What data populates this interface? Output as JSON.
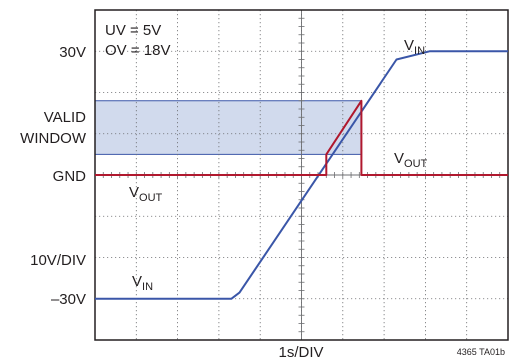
{
  "chart_data": {
    "type": "line",
    "title": "",
    "annotations": {
      "uv": "UV = 5V",
      "ov": "OV = 18V",
      "window_line1": "VALID",
      "window_line2": "WINDOW",
      "vin_top_main": "V",
      "vin_top_sub": "IN",
      "vout_right_main": "V",
      "vout_right_sub": "OUT",
      "vout_left_main": "V",
      "vout_left_sub": "OUT",
      "vin_bottom_main": "V",
      "vin_bottom_sub": "IN"
    },
    "y_tick_labels": {
      "top": "30V",
      "gnd": "GND",
      "scale": "10V/DIV",
      "bottom": "–30V"
    },
    "xlabel": "1s/DIV",
    "figure_id": "4365 TA01b",
    "x_divisions": 10,
    "y_divisions": 8,
    "xlim": [
      0,
      10
    ],
    "ylim": [
      -40,
      40
    ],
    "grid": true,
    "valid_window": [
      5,
      18
    ],
    "series": [
      {
        "key": "vin",
        "color": "#3a56a8",
        "x": [
          0,
          3.3,
          3.5,
          7.3,
          8.1,
          10
        ],
        "y": [
          -30,
          -30,
          -28.5,
          28,
          30,
          30
        ]
      },
      {
        "key": "vout",
        "color": "#b0182e",
        "x": [
          0,
          5.6,
          5.6,
          6.45,
          6.45,
          10
        ],
        "y": [
          0,
          0,
          5,
          18,
          0,
          0
        ]
      }
    ]
  }
}
